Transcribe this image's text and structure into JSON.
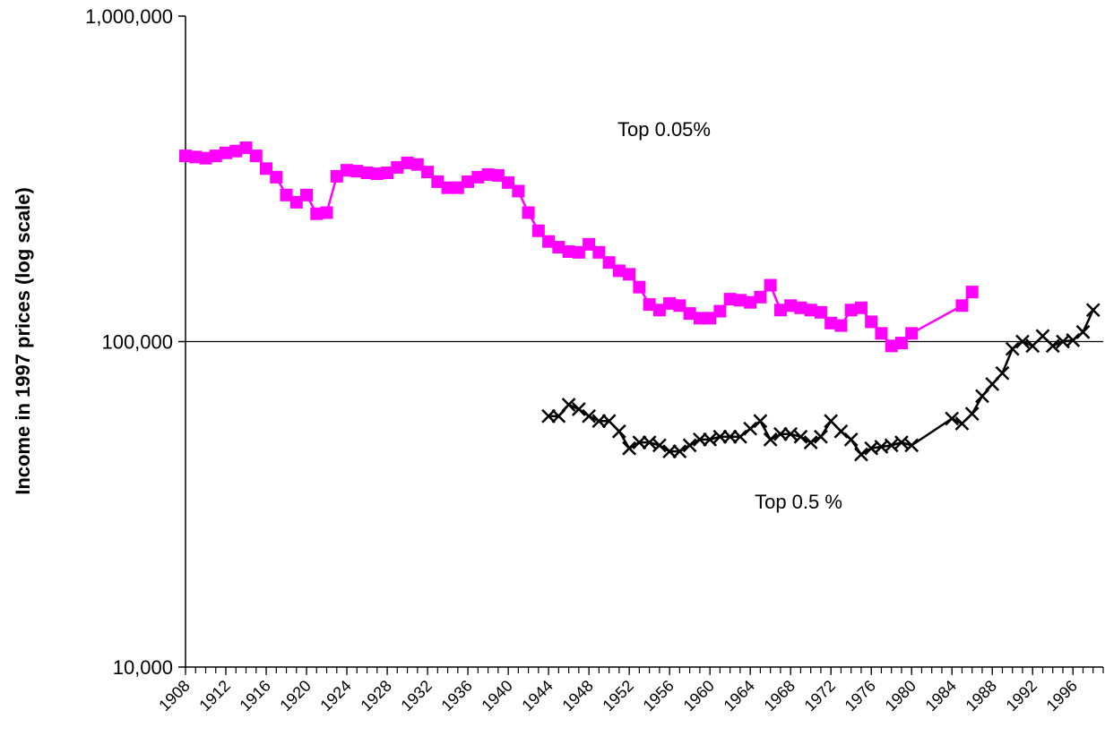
{
  "chart_data": {
    "type": "line",
    "ylabel": "Income in 1997 prices (log scale)",
    "log_y": true,
    "grid": true,
    "ylim": [
      10000,
      1000000
    ],
    "yticks": [
      {
        "value": 10000,
        "label": "10,000"
      },
      {
        "value": 100000,
        "label": "100,000"
      },
      {
        "value": 1000000,
        "label": "1,000,000"
      }
    ],
    "xlim": [
      1908,
      1999
    ],
    "xticks": [
      1908,
      1912,
      1916,
      1920,
      1924,
      1928,
      1932,
      1936,
      1940,
      1944,
      1948,
      1952,
      1956,
      1960,
      1964,
      1968,
      1972,
      1976,
      1980,
      1984,
      1988,
      1992,
      1996
    ],
    "xminor_ticks": [
      1908,
      1909,
      1910,
      1911,
      1912,
      1913,
      1914,
      1915,
      1916,
      1917,
      1918,
      1919,
      1920,
      1921,
      1922,
      1923,
      1924,
      1925,
      1926,
      1927,
      1928,
      1929,
      1930,
      1931,
      1932,
      1933,
      1934,
      1935,
      1936,
      1937,
      1938,
      1939,
      1940,
      1941,
      1942,
      1943,
      1944,
      1945,
      1946,
      1947,
      1948,
      1949,
      1950,
      1951,
      1952,
      1953,
      1954,
      1955,
      1956,
      1957,
      1958,
      1959,
      1960,
      1961,
      1962,
      1963,
      1964,
      1965,
      1966,
      1967,
      1968,
      1969,
      1970,
      1971,
      1972,
      1973,
      1974,
      1975,
      1976,
      1977,
      1978,
      1979,
      1980,
      1981,
      1982,
      1983,
      1984,
      1985,
      1986,
      1987,
      1988,
      1989,
      1990,
      1991,
      1992,
      1993,
      1994,
      1995,
      1996,
      1997,
      1998,
      1999
    ],
    "annotations": [
      "Top 0.05%",
      "Top 0.5 %"
    ],
    "series": [
      {
        "color": "#ff00ff",
        "marker": "square",
        "x": [
          1908,
          1909,
          1910,
          1911,
          1912,
          1913,
          1914,
          1915,
          1916,
          1917,
          1918,
          1919,
          1920,
          1921,
          1922,
          1923,
          1924,
          1925,
          1926,
          1927,
          1928,
          1929,
          1930,
          1931,
          1932,
          1933,
          1934,
          1935,
          1936,
          1937,
          1938,
          1939,
          1940,
          1941,
          1942,
          1943,
          1944,
          1945,
          1946,
          1947,
          1948,
          1949,
          1950,
          1951,
          1952,
          1953,
          1954,
          1955,
          1956,
          1957,
          1958,
          1959,
          1960,
          1961,
          1962,
          1963,
          1964,
          1965,
          1966,
          1967,
          1968,
          1969,
          1970,
          1971,
          1972,
          1973,
          1974,
          1975,
          1976,
          1977,
          1978,
          1979,
          1980,
          1985,
          1986
        ],
        "values": [
          372000,
          369000,
          366000,
          372000,
          380000,
          385000,
          394000,
          372000,
          340000,
          320000,
          282000,
          268000,
          282000,
          247000,
          249000,
          322000,
          336000,
          334000,
          330000,
          328000,
          330000,
          343000,
          354000,
          350000,
          332000,
          310000,
          297000,
          297000,
          310000,
          320000,
          326000,
          324000,
          308000,
          290000,
          249000,
          219000,
          203000,
          195000,
          189000,
          188000,
          199000,
          188000,
          175000,
          165000,
          161000,
          147000,
          130000,
          125000,
          131000,
          129000,
          122000,
          118000,
          118000,
          124000,
          135000,
          134000,
          132000,
          137000,
          149000,
          125000,
          129000,
          127000,
          125000,
          123000,
          114000,
          112000,
          125000,
          127000,
          115000,
          106000,
          97000,
          99000,
          106000,
          129000,
          142000
        ]
      },
      {
        "color": "#000000",
        "marker": "x",
        "x": [
          1944,
          1945,
          1946,
          1947,
          1948,
          1949,
          1950,
          1951,
          1952,
          1953,
          1954,
          1955,
          1956,
          1957,
          1958,
          1959,
          1960,
          1961,
          1962,
          1963,
          1964,
          1965,
          1966,
          1967,
          1968,
          1969,
          1970,
          1971,
          1972,
          1973,
          1974,
          1975,
          1976,
          1977,
          1978,
          1979,
          1980,
          1984,
          1985,
          1986,
          1987,
          1988,
          1989,
          1990,
          1991,
          1992,
          1993,
          1994,
          1995,
          1996,
          1997,
          1998
        ],
        "values": [
          59000,
          59000,
          64000,
          62000,
          59000,
          57000,
          57000,
          53000,
          47000,
          49000,
          49000,
          48000,
          46000,
          46000,
          48000,
          50000,
          50000,
          51000,
          51000,
          51000,
          54000,
          57000,
          50000,
          52000,
          52000,
          51000,
          49000,
          51000,
          57000,
          53000,
          50000,
          45000,
          47000,
          47500,
          48000,
          49000,
          48000,
          58000,
          56000,
          60000,
          68000,
          74000,
          80000,
          95000,
          100000,
          97000,
          104000,
          97000,
          100000,
          101000,
          107000,
          125000
        ]
      }
    ]
  }
}
